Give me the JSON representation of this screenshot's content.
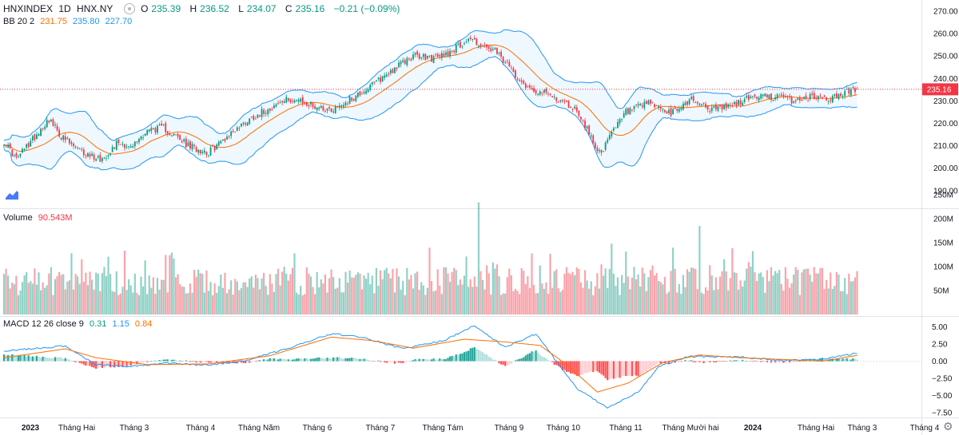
{
  "header": {
    "symbol": "HNXINDEX",
    "interval": "1D",
    "exchange": "HNX.NY",
    "open_label": "O",
    "open": "235.39",
    "high_label": "H",
    "high": "236.52",
    "low_label": "L",
    "low": "234.07",
    "close_label": "C",
    "close": "235.16",
    "change": "−0.21 (−0.09%)"
  },
  "bb": {
    "label": "BB 20 2",
    "basis": "231.75",
    "upper": "235.80",
    "lower": "227.70"
  },
  "volume": {
    "label": "Volume",
    "value": "90.543M"
  },
  "macd": {
    "label": "MACD 12 26 close 9",
    "hist": "0.31",
    "macd": "1.15",
    "signal": "0.84"
  },
  "last_price_tag": "235.16",
  "colors": {
    "up": "#089981",
    "down": "#f23645",
    "bb_basis": "#ff6d00",
    "bb_band": "#2196f3",
    "macd": "#2196f3",
    "signal": "#ff6d00"
  },
  "chart_data": [
    {
      "type": "candlestick",
      "title": "HNXINDEX 1D HNX.NY",
      "x_ticks": [
        "2023",
        "Tháng Hai",
        "Tháng 3",
        "Tháng 4",
        "Tháng Năm",
        "Tháng 6",
        "Tháng 7",
        "Tháng Tám",
        "Tháng 9",
        "Tháng 10",
        "Tháng 11",
        "Tháng Mười hai",
        "2024",
        "Tháng Hai",
        "Tháng 3",
        "Tháng 4"
      ],
      "y_ticks": [
        "270.00",
        "260.00",
        "250.00",
        "240.00",
        "230.00",
        "220.00",
        "210.00",
        "200.00",
        "190.00"
      ],
      "ylim": [
        185,
        274
      ],
      "close_anchors": [
        [
          0,
          212
        ],
        [
          6,
          204
        ],
        [
          14,
          213
        ],
        [
          22,
          222
        ],
        [
          28,
          214
        ],
        [
          38,
          207
        ],
        [
          48,
          204
        ],
        [
          56,
          212
        ],
        [
          62,
          209
        ],
        [
          70,
          217
        ],
        [
          78,
          218
        ],
        [
          90,
          210
        ],
        [
          100,
          207
        ],
        [
          110,
          215
        ],
        [
          120,
          222
        ],
        [
          130,
          227
        ],
        [
          140,
          231
        ],
        [
          150,
          228
        ],
        [
          160,
          226
        ],
        [
          170,
          231
        ],
        [
          180,
          237
        ],
        [
          190,
          244
        ],
        [
          200,
          250
        ],
        [
          210,
          249
        ],
        [
          218,
          252
        ],
        [
          228,
          258
        ],
        [
          234,
          254
        ],
        [
          240,
          252
        ],
        [
          246,
          246
        ],
        [
          256,
          236
        ],
        [
          268,
          232
        ],
        [
          280,
          226
        ],
        [
          288,
          212
        ],
        [
          292,
          206
        ],
        [
          296,
          214
        ],
        [
          304,
          225
        ],
        [
          316,
          229
        ],
        [
          326,
          224
        ],
        [
          336,
          231
        ],
        [
          346,
          226
        ],
        [
          356,
          228
        ],
        [
          366,
          232
        ],
        [
          376,
          232
        ],
        [
          386,
          230
        ],
        [
          396,
          232
        ],
        [
          404,
          231
        ],
        [
          412,
          234
        ],
        [
          417,
          235.16
        ]
      ]
    },
    {
      "type": "bar",
      "title": "Volume",
      "y_ticks": [
        "250M",
        "200M",
        "150M",
        "100M",
        "50M"
      ],
      "ylim": [
        0,
        255
      ],
      "peaks": [
        [
          232,
          234
        ],
        [
          340,
          185
        ],
        [
          297,
          148
        ],
        [
          33,
          128
        ]
      ]
    },
    {
      "type": "line",
      "title": "MACD 12 26 close 9",
      "y_ticks": [
        "5.00",
        "2.50",
        "0.00",
        "−2.50",
        "−5.00",
        "−7.50"
      ],
      "ylim": [
        -8.3,
        5.8
      ],
      "series": [
        {
          "name": "MACD",
          "anchors": [
            [
              0,
              1.5
            ],
            [
              30,
              2.2
            ],
            [
              45,
              -0.5
            ],
            [
              60,
              -0.8
            ],
            [
              80,
              -0.3
            ],
            [
              100,
              -0.6
            ],
            [
              120,
              0.2
            ],
            [
              140,
              2.0
            ],
            [
              160,
              4.0
            ],
            [
              175,
              3.5
            ],
            [
              195,
              1.8
            ],
            [
              215,
              3.0
            ],
            [
              230,
              5.2
            ],
            [
              245,
              2.0
            ],
            [
              260,
              4.0
            ],
            [
              270,
              0.0
            ],
            [
              280,
              -4.0
            ],
            [
              295,
              -6.8
            ],
            [
              310,
              -4.5
            ],
            [
              320,
              -0.8
            ],
            [
              335,
              0.7
            ],
            [
              360,
              0.6
            ],
            [
              380,
              0.1
            ],
            [
              400,
              0.3
            ],
            [
              417,
              1.15
            ]
          ]
        },
        {
          "name": "Signal",
          "anchors": [
            [
              0,
              0.5
            ],
            [
              30,
              1.8
            ],
            [
              45,
              0.5
            ],
            [
              70,
              -0.5
            ],
            [
              100,
              -0.4
            ],
            [
              130,
              0.8
            ],
            [
              160,
              3.5
            ],
            [
              180,
              3.0
            ],
            [
              200,
              1.9
            ],
            [
              225,
              3.2
            ],
            [
              245,
              2.8
            ],
            [
              262,
              2.3
            ],
            [
              275,
              -0.5
            ],
            [
              290,
              -4.5
            ],
            [
              305,
              -3.2
            ],
            [
              322,
              -0.2
            ],
            [
              340,
              0.9
            ],
            [
              360,
              0.5
            ],
            [
              385,
              0.2
            ],
            [
              400,
              0.0
            ],
            [
              417,
              0.84
            ]
          ]
        }
      ]
    }
  ]
}
